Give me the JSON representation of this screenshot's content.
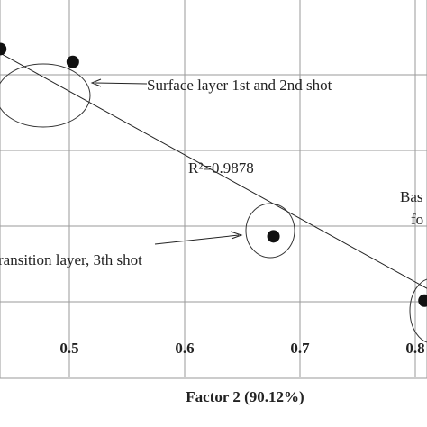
{
  "chart_data": {
    "type": "scatter",
    "xlabel": "Factor 2 (90.12%)",
    "ylabel": "",
    "xlim": [
      0.4,
      0.9
    ],
    "ylim": [
      0,
      1
    ],
    "x_ticks": [
      "0.5",
      "0.6",
      "0.7",
      "0.8"
    ],
    "grid": true,
    "points": [
      {
        "x": 0.44,
        "y": 0.868
      },
      {
        "x": 0.503,
        "y": 0.834
      },
      {
        "x": 0.677,
        "y": 0.373
      },
      {
        "x": 0.808,
        "y": 0.203
      }
    ],
    "fit_line": {
      "x": [
        0.415,
        0.88
      ],
      "y": [
        0.899,
        0.118
      ]
    },
    "r_squared_label": "R²=0.9878",
    "annotations": {
      "surface": "Surface layer 1st and 2nd shot",
      "transition": "ransition layer, 3th shot",
      "base_line1": "Bas",
      "base_line2": "fo"
    }
  }
}
